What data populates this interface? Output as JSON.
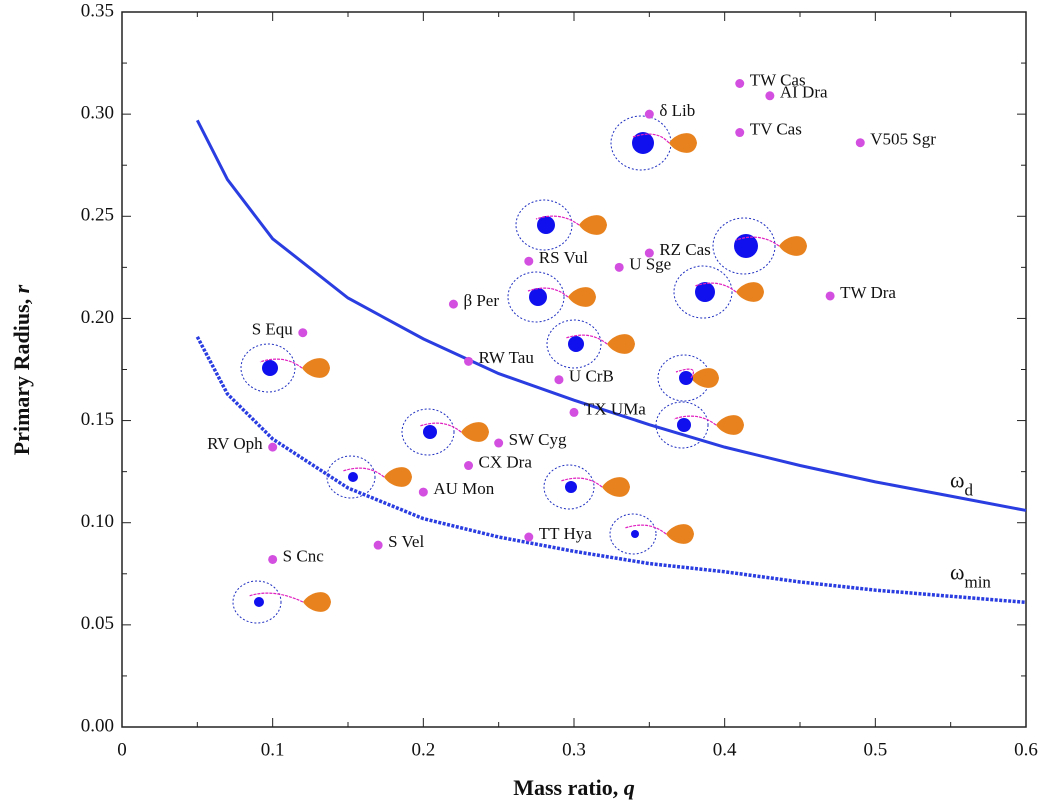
{
  "chart_data": {
    "type": "scatter",
    "xlabel": "Mass ratio, ",
    "xlabel_var": "q",
    "ylabel": "Primary Radius, ",
    "ylabel_var": "r",
    "xlim": [
      0,
      0.6
    ],
    "ylim": [
      0,
      0.35
    ],
    "xticks": [
      0,
      0.1,
      0.2,
      0.3,
      0.4,
      0.5,
      0.6
    ],
    "yticks": [
      {
        "value": 0,
        "label": "0.00"
      },
      {
        "value": 0.05,
        "label": "0.05"
      },
      {
        "value": 0.1,
        "label": "0.10"
      },
      {
        "value": 0.15,
        "label": "0.15"
      },
      {
        "value": 0.2,
        "label": "0.20"
      },
      {
        "value": 0.25,
        "label": "0.25"
      },
      {
        "value": 0.3,
        "label": "0.30"
      },
      {
        "value": 0.35,
        "label": "0.35"
      }
    ],
    "points": {
      "color": "#d24fe0",
      "labels": [
        "TW Cas",
        "AI Dra",
        "δ Lib",
        "TV Cas",
        "V505 Sgr",
        "RZ Cas",
        "RS Vul",
        "U Sge",
        "TW Dra",
        "β Per",
        "S Equ",
        "RW Tau",
        "U CrB",
        "TX UMa",
        "SW Cyg",
        "RV Oph",
        "CX Dra",
        "AU Mon",
        "TT Hya",
        "S Vel",
        "S Cnc"
      ],
      "x": [
        0.41,
        0.43,
        0.35,
        0.41,
        0.49,
        0.35,
        0.27,
        0.33,
        0.47,
        0.22,
        0.12,
        0.23,
        0.29,
        0.3,
        0.25,
        0.1,
        0.23,
        0.2,
        0.27,
        0.17,
        0.1
      ],
      "y": [
        0.315,
        0.309,
        0.3,
        0.291,
        0.286,
        0.232,
        0.228,
        0.225,
        0.211,
        0.207,
        0.193,
        0.179,
        0.17,
        0.154,
        0.139,
        0.137,
        0.128,
        0.115,
        0.093,
        0.089,
        0.082
      ]
    },
    "curves": [
      {
        "label": "ω",
        "label_sub": "d",
        "color": "#2a3de0",
        "dashed": false,
        "x": [
          0.05,
          0.07,
          0.1,
          0.15,
          0.2,
          0.25,
          0.3,
          0.35,
          0.4,
          0.45,
          0.5,
          0.55,
          0.6
        ],
        "y": [
          0.297,
          0.268,
          0.239,
          0.21,
          0.19,
          0.173,
          0.16,
          0.148,
          0.137,
          0.128,
          0.12,
          0.113,
          0.106
        ]
      },
      {
        "label": "ω",
        "label_sub": "min",
        "color": "#2a3de0",
        "dashed": true,
        "x": [
          0.05,
          0.07,
          0.1,
          0.15,
          0.2,
          0.25,
          0.3,
          0.35,
          0.4,
          0.45,
          0.5,
          0.55,
          0.6
        ],
        "y": [
          0.191,
          0.163,
          0.141,
          0.117,
          0.102,
          0.093,
          0.086,
          0.08,
          0.076,
          0.071,
          0.067,
          0.064,
          0.061
        ]
      }
    ]
  }
}
